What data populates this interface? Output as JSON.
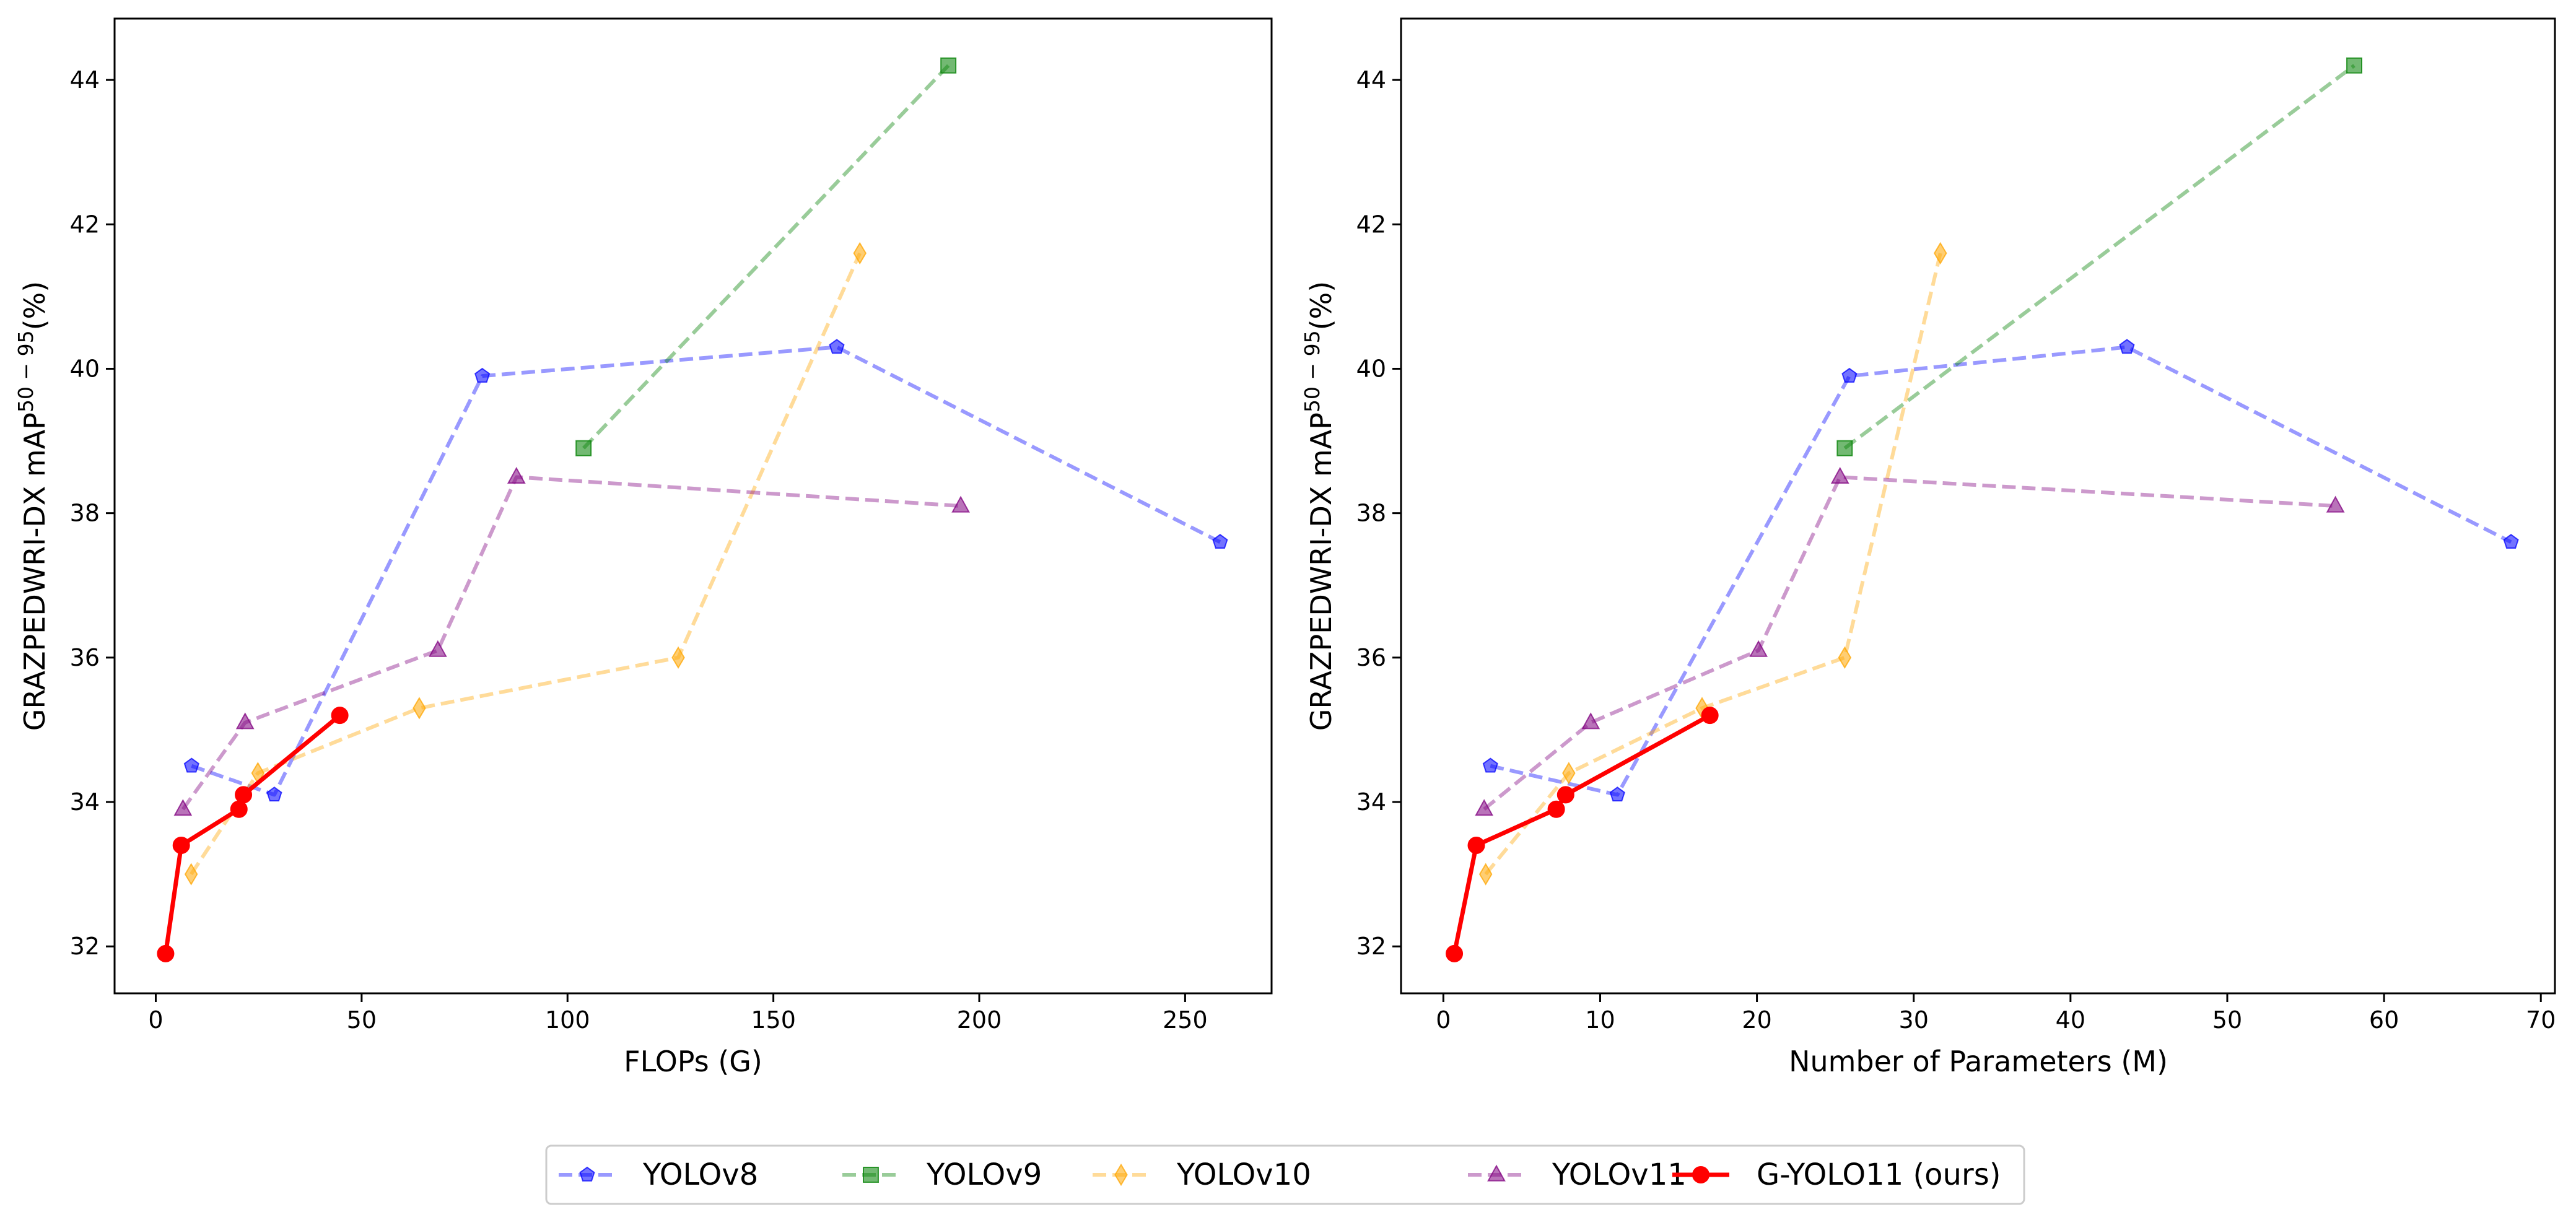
{
  "chart_data": [
    {
      "type": "line",
      "xlabel": "FLOPs (G)",
      "ylabel_main": "GRAZPEDWRI-DX mAP",
      "ylabel_sup": "50 − 95",
      "ylabel_unit": "(%)",
      "xlim": [
        -10,
        271
      ],
      "ylim": [
        31.35,
        44.85
      ],
      "xticks": [
        0,
        50,
        100,
        150,
        200,
        250
      ],
      "yticks": [
        32,
        34,
        36,
        38,
        40,
        42,
        44
      ],
      "grid": false,
      "series": [
        {
          "name": "YOLOv8",
          "color": "#0000ff",
          "marker": "pentagon",
          "dashed": true,
          "opacity": 0.4,
          "x": [
            8.7,
            28.8,
            79.3,
            165.4,
            258.5
          ],
          "y": [
            34.5,
            34.1,
            39.9,
            40.3,
            37.6
          ]
        },
        {
          "name": "YOLOv9",
          "color": "#008000",
          "marker": "square",
          "dashed": true,
          "opacity": 0.4,
          "x": [
            103.9,
            192.5
          ],
          "y": [
            38.9,
            44.2
          ]
        },
        {
          "name": "YOLOv10",
          "color": "#ffa500",
          "marker": "diamond",
          "dashed": true,
          "opacity": 0.4,
          "x": [
            8.6,
            24.8,
            64.0,
            126.9,
            171.0
          ],
          "y": [
            33.0,
            34.4,
            35.3,
            36.0,
            41.6
          ]
        },
        {
          "name": "YOLOv11",
          "color": "#800080",
          "marker": "triangle",
          "dashed": true,
          "opacity": 0.4,
          "x": [
            6.6,
            21.7,
            68.5,
            87.6,
            195.5
          ],
          "y": [
            33.9,
            35.1,
            36.1,
            38.5,
            38.1
          ]
        },
        {
          "name": "G-YOLO11 (ours)",
          "color": "#ff0000",
          "marker": "circle",
          "dashed": false,
          "opacity": 1,
          "x": [
            2.4,
            6.2,
            20.2,
            21.3,
            44.7
          ],
          "y": [
            31.9,
            33.4,
            33.9,
            34.1,
            35.2
          ]
        }
      ]
    },
    {
      "type": "line",
      "xlabel": "Number of Parameters (M)",
      "ylabel_main": "GRAZPEDWRI-DX mAP",
      "ylabel_sup": "50 − 95",
      "ylabel_unit": "(%)",
      "xlim": [
        -2.7,
        70.9
      ],
      "ylim": [
        31.35,
        44.85
      ],
      "xticks": [
        0,
        10,
        20,
        30,
        40,
        50,
        60,
        70
      ],
      "yticks": [
        32,
        34,
        36,
        38,
        40,
        42,
        44
      ],
      "grid": false,
      "series": [
        {
          "name": "YOLOv8",
          "color": "#0000ff",
          "marker": "pentagon",
          "dashed": true,
          "opacity": 0.4,
          "x": [
            3.0,
            11.1,
            25.9,
            43.6,
            68.1
          ],
          "y": [
            34.5,
            34.1,
            39.9,
            40.3,
            37.6
          ]
        },
        {
          "name": "YOLOv9",
          "color": "#008000",
          "marker": "square",
          "dashed": true,
          "opacity": 0.4,
          "x": [
            25.6,
            58.1
          ],
          "y": [
            38.9,
            44.2
          ]
        },
        {
          "name": "YOLOv10",
          "color": "#ffa500",
          "marker": "diamond",
          "dashed": true,
          "opacity": 0.4,
          "x": [
            2.7,
            8.0,
            16.5,
            25.6,
            31.7
          ],
          "y": [
            33.0,
            34.4,
            35.3,
            36.0,
            41.6
          ]
        },
        {
          "name": "YOLOv11",
          "color": "#800080",
          "marker": "triangle",
          "dashed": true,
          "opacity": 0.4,
          "x": [
            2.6,
            9.4,
            20.1,
            25.3,
            56.9
          ],
          "y": [
            33.9,
            35.1,
            36.1,
            38.5,
            38.1
          ]
        },
        {
          "name": "G-YOLO11 (ours)",
          "color": "#ff0000",
          "marker": "circle",
          "dashed": false,
          "opacity": 1,
          "x": [
            0.7,
            2.1,
            7.2,
            7.8,
            17.0
          ],
          "y": [
            31.9,
            33.4,
            33.9,
            34.1,
            35.2
          ]
        }
      ]
    }
  ],
  "legend": {
    "placement": "bottom-center",
    "items": [
      "YOLOv8",
      "YOLOv9",
      "YOLOv10",
      "YOLOv11",
      "G-YOLO11 (ours)"
    ]
  }
}
